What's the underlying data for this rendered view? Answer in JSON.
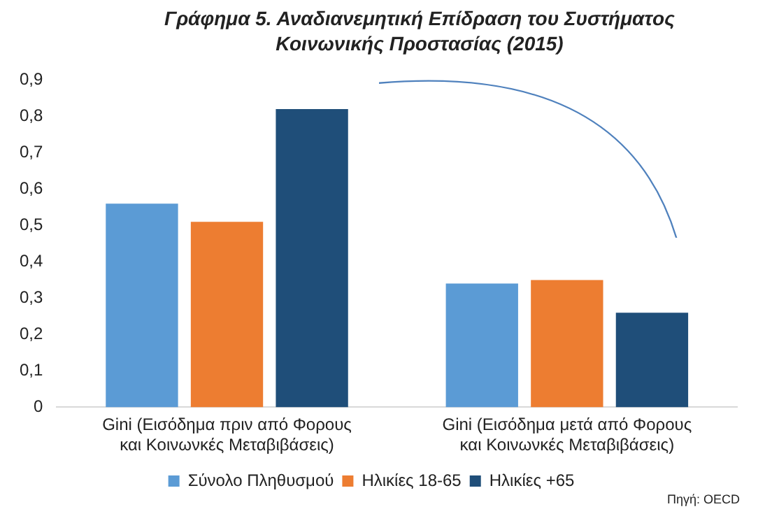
{
  "chart_data": {
    "type": "bar",
    "title": "Γράφημα 5. Αναδιανεμητική Επίδραση του Συστήματος Κοινωνικής Προστασίας (2015)",
    "categories": [
      "Gini (Εισόδημα πριν από Φορους και Κοινωνκές Μεταβιβάσεις)",
      "Gini (Εισόδημα μετά από Φορους και Κοινωνκές Μεταβιβάσεις)"
    ],
    "series": [
      {
        "name": "Σύνολο Πληθυσμού",
        "color": "#5b9bd5",
        "values": [
          0.56,
          0.34
        ]
      },
      {
        "name": "Ηλικίες 18-65",
        "color": "#ed7d31",
        "values": [
          0.51,
          0.35
        ]
      },
      {
        "name": "Ηλικίες +65",
        "color": "#1f4e79",
        "values": [
          0.82,
          0.26
        ]
      }
    ],
    "ylim": [
      0,
      0.9
    ],
    "yticks": [
      {
        "value": 0,
        "label": "0"
      },
      {
        "value": 0.1,
        "label": "0,1"
      },
      {
        "value": 0.2,
        "label": "0,2"
      },
      {
        "value": 0.3,
        "label": "0,3"
      },
      {
        "value": 0.4,
        "label": "0,4"
      },
      {
        "value": 0.5,
        "label": "0,5"
      },
      {
        "value": 0.6,
        "label": "0,6"
      },
      {
        "value": 0.7,
        "label": "0,7"
      },
      {
        "value": 0.8,
        "label": "0,8"
      },
      {
        "value": 0.9,
        "label": "0,9"
      }
    ],
    "grid": false,
    "legend": "bottom",
    "annotations": [
      "Πηγή: OECD"
    ]
  }
}
